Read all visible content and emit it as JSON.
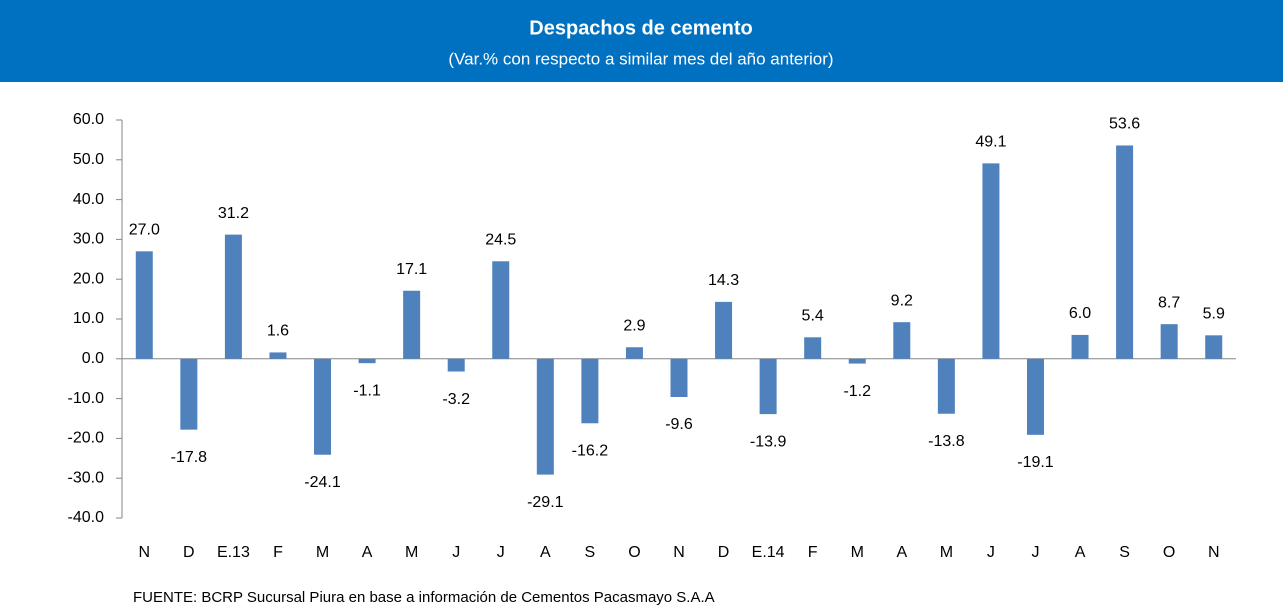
{
  "chart_data": {
    "type": "bar",
    "title": "Despachos de cemento",
    "subtitle": "(Var.% con respecto a similar mes del año anterior)",
    "categories": [
      "N",
      "D",
      "E.13",
      "F",
      "M",
      "A",
      "M",
      "J",
      "J",
      "A",
      "S",
      "O",
      "N",
      "D",
      "E.14",
      "F",
      "M",
      "A",
      "M",
      "J",
      "J",
      "A",
      "S",
      "O",
      "N"
    ],
    "values": [
      27.0,
      -17.8,
      31.2,
      1.6,
      -24.1,
      -1.1,
      17.1,
      -3.2,
      24.5,
      -29.1,
      -16.2,
      2.9,
      -9.6,
      14.3,
      -13.9,
      5.4,
      -1.2,
      9.2,
      -13.8,
      49.1,
      -19.1,
      6.0,
      53.6,
      8.7,
      5.9
    ],
    "value_labels": [
      "27.0",
      "-17.8",
      "31.2",
      "1.6",
      "-24.1",
      "-1.1",
      "17.1",
      "-3.2",
      "24.5",
      "-29.1",
      "-16.2",
      "2.9",
      "-9.6",
      "14.3",
      "-13.9",
      "5.4",
      "-1.2",
      "9.2",
      "-13.8",
      "49.1",
      "-19.1",
      "6.0",
      "53.6",
      "8.7",
      "5.9"
    ],
    "color": "#4f81bd",
    "ylim": [
      -40,
      60
    ],
    "yticks": [
      {
        "value": -40,
        "label": "-40.0"
      },
      {
        "value": -30,
        "label": "-30.0"
      },
      {
        "value": -20,
        "label": "-20.0"
      },
      {
        "value": -10,
        "label": "-10.0"
      },
      {
        "value": 0,
        "label": "0.0"
      },
      {
        "value": 10,
        "label": "10.0"
      },
      {
        "value": 20,
        "label": "20.0"
      },
      {
        "value": 30,
        "label": "30.0"
      },
      {
        "value": 40,
        "label": "40.0"
      },
      {
        "value": 50,
        "label": "50.0"
      },
      {
        "value": 60,
        "label": "60.0"
      }
    ],
    "grid": false,
    "source": "FUENTE: BCRP Sucursal Piura en base a información de Cementos Pacasmayo S.A.A"
  }
}
